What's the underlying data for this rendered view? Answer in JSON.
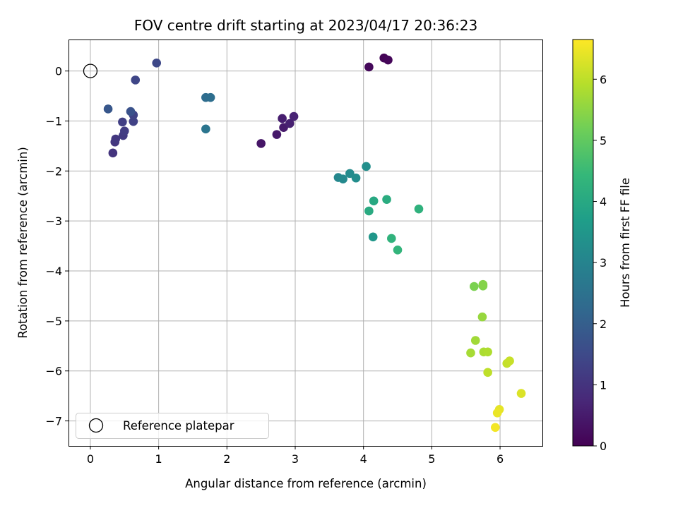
{
  "chart_data": {
    "type": "scatter",
    "title": "FOV centre drift starting at 2023/04/17 20:36:23",
    "xlabel": "Angular distance from reference (arcmin)",
    "ylabel": "Rotation from reference (arcmin)",
    "xlim": [
      -0.32,
      6.62
    ],
    "ylim": [
      -7.5,
      0.63
    ],
    "xticks": [
      0,
      1,
      2,
      3,
      4,
      5,
      6
    ],
    "yticks": [
      0,
      -1,
      -2,
      -3,
      -4,
      -5,
      -6,
      -7
    ],
    "grid": true,
    "legend": {
      "placement": "lower-left",
      "entries": [
        "Reference platepar"
      ]
    },
    "reference_point": {
      "x": 0,
      "y": 0
    },
    "colorbar": {
      "label": "Hours from first FF file",
      "range": [
        0,
        6.65
      ],
      "ticks": [
        0,
        1,
        2,
        3,
        4,
        5,
        6
      ],
      "colormap": "viridis",
      "colormap_stops": [
        "#440154",
        "#482878",
        "#3e4989",
        "#31688e",
        "#26828e",
        "#1f9e89",
        "#35b779",
        "#6ece58",
        "#b5de2b",
        "#fde725"
      ]
    },
    "points": [
      {
        "x": 4.3,
        "y": 0.26,
        "c": 0.05
      },
      {
        "x": 4.36,
        "y": 0.22,
        "c": 0.1
      },
      {
        "x": 4.08,
        "y": 0.08,
        "c": 0.15
      },
      {
        "x": 2.5,
        "y": -1.45,
        "c": 0.4
      },
      {
        "x": 2.73,
        "y": -1.27,
        "c": 0.45
      },
      {
        "x": 2.83,
        "y": -1.13,
        "c": 0.5
      },
      {
        "x": 2.81,
        "y": -0.95,
        "c": 0.55
      },
      {
        "x": 2.92,
        "y": -1.05,
        "c": 0.6
      },
      {
        "x": 2.98,
        "y": -0.91,
        "c": 0.65
      },
      {
        "x": 0.33,
        "y": -1.64,
        "c": 1.0
      },
      {
        "x": 0.36,
        "y": -1.42,
        "c": 1.05
      },
      {
        "x": 0.37,
        "y": -1.36,
        "c": 1.1
      },
      {
        "x": 0.48,
        "y": -1.29,
        "c": 1.15
      },
      {
        "x": 0.5,
        "y": -1.2,
        "c": 1.2
      },
      {
        "x": 0.47,
        "y": -1.02,
        "c": 1.25
      },
      {
        "x": 0.63,
        "y": -1.01,
        "c": 1.3
      },
      {
        "x": 0.63,
        "y": -0.88,
        "c": 1.35
      },
      {
        "x": 0.66,
        "y": -0.18,
        "c": 1.4
      },
      {
        "x": 0.97,
        "y": 0.16,
        "c": 1.45
      },
      {
        "x": 0.59,
        "y": -0.81,
        "c": 1.7
      },
      {
        "x": 0.26,
        "y": -0.76,
        "c": 1.8
      },
      {
        "x": 1.69,
        "y": -0.53,
        "c": 2.35
      },
      {
        "x": 1.76,
        "y": -0.53,
        "c": 2.4
      },
      {
        "x": 1.69,
        "y": -1.16,
        "c": 2.6
      },
      {
        "x": 3.63,
        "y": -2.13,
        "c": 3.1
      },
      {
        "x": 3.7,
        "y": -2.16,
        "c": 3.15
      },
      {
        "x": 3.8,
        "y": -2.05,
        "c": 3.2
      },
      {
        "x": 3.89,
        "y": -2.14,
        "c": 3.25
      },
      {
        "x": 4.04,
        "y": -1.91,
        "c": 3.3
      },
      {
        "x": 4.14,
        "y": -3.32,
        "c": 3.5
      },
      {
        "x": 4.15,
        "y": -2.6,
        "c": 4.0
      },
      {
        "x": 4.08,
        "y": -2.8,
        "c": 4.05
      },
      {
        "x": 4.34,
        "y": -2.57,
        "c": 4.1
      },
      {
        "x": 4.81,
        "y": -2.76,
        "c": 4.25
      },
      {
        "x": 4.41,
        "y": -3.35,
        "c": 4.3
      },
      {
        "x": 4.5,
        "y": -3.58,
        "c": 4.35
      },
      {
        "x": 5.62,
        "y": -4.31,
        "c": 5.3
      },
      {
        "x": 5.75,
        "y": -4.3,
        "c": 5.35
      },
      {
        "x": 5.75,
        "y": -4.27,
        "c": 5.4
      },
      {
        "x": 5.74,
        "y": -4.92,
        "c": 5.6
      },
      {
        "x": 5.64,
        "y": -5.39,
        "c": 5.7
      },
      {
        "x": 5.57,
        "y": -5.64,
        "c": 5.75
      },
      {
        "x": 5.76,
        "y": -5.62,
        "c": 5.8
      },
      {
        "x": 5.82,
        "y": -5.62,
        "c": 5.85
      },
      {
        "x": 5.82,
        "y": -6.03,
        "c": 6.0
      },
      {
        "x": 6.1,
        "y": -5.85,
        "c": 6.05
      },
      {
        "x": 6.14,
        "y": -5.8,
        "c": 6.1
      },
      {
        "x": 6.31,
        "y": -6.45,
        "c": 6.3
      },
      {
        "x": 5.99,
        "y": -6.77,
        "c": 6.4
      },
      {
        "x": 5.96,
        "y": -6.84,
        "c": 6.45
      },
      {
        "x": 5.93,
        "y": -7.13,
        "c": 6.55
      }
    ]
  }
}
